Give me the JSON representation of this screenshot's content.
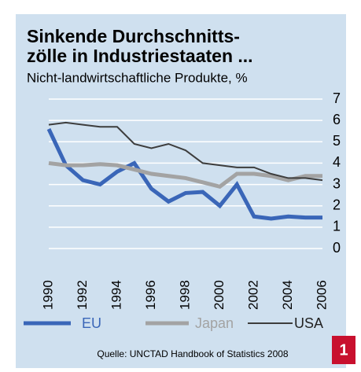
{
  "chart_data": {
    "type": "line",
    "title": [
      "Sinkende Durchschnitts-",
      "zölle in Industriestaaten ..."
    ],
    "subtitle": "Nicht-landwirtschaftliche Produkte, %",
    "categories": [
      "1990",
      null,
      "1992",
      null,
      "1994",
      null,
      "1996",
      null,
      "1998",
      null,
      "2000",
      null,
      "2002",
      null,
      "2004",
      null,
      "2006"
    ],
    "series": [
      {
        "name": "EU",
        "color": "#3a66b8",
        "values": [
          5.6,
          3.9,
          3.2,
          3.0,
          3.6,
          4.0,
          2.8,
          2.2,
          2.6,
          2.65,
          2.0,
          3.0,
          1.5,
          1.4,
          1.5,
          1.45,
          1.45
        ]
      },
      {
        "name": "Japan",
        "color": "#a3a3a3",
        "values": [
          4.0,
          3.9,
          3.9,
          3.95,
          3.9,
          3.7,
          3.5,
          3.4,
          3.3,
          3.1,
          2.9,
          3.5,
          3.5,
          3.4,
          3.2,
          3.4,
          3.4
        ]
      },
      {
        "name": "USA",
        "color": "#3d3d3d",
        "values": [
          5.8,
          5.9,
          5.8,
          5.7,
          5.7,
          4.9,
          4.7,
          4.9,
          4.6,
          4.0,
          3.9,
          3.8,
          3.8,
          3.5,
          3.3,
          3.3,
          3.2
        ]
      }
    ],
    "ylim": [
      0,
      7
    ],
    "yticks": [
      0,
      1,
      2,
      3,
      4,
      5,
      6,
      7
    ],
    "grid": true,
    "source": "Quelle: UNCTAD Handbook of Statistics 2008",
    "badge": "1"
  }
}
